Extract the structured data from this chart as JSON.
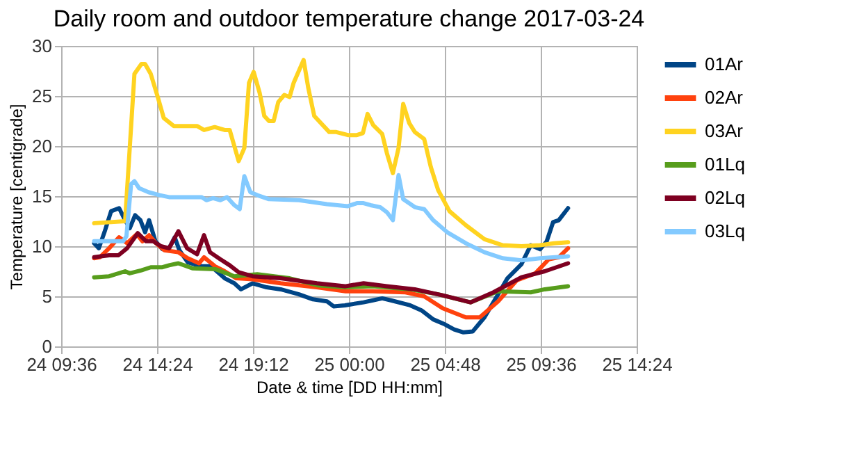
{
  "chart_data": {
    "type": "line",
    "title": "Daily room and outdoor temperature change 2017-03-24",
    "xlabel": "Date & time [DD HH:mm]",
    "ylabel": "Temperature [centigrade]",
    "xlim": [
      "2017-03-24T09:36",
      "2017-03-25T14:24"
    ],
    "xticks": [
      {
        "value": "2017-03-24T09:36",
        "label": "24 09:36"
      },
      {
        "value": "2017-03-24T14:24",
        "label": "24 14:24"
      },
      {
        "value": "2017-03-24T19:12",
        "label": "24 19:12"
      },
      {
        "value": "2017-03-25T00:00",
        "label": "25 00:00"
      },
      {
        "value": "2017-03-25T04:48",
        "label": "25 04:48"
      },
      {
        "value": "2017-03-25T09:36",
        "label": "25 09:36"
      },
      {
        "value": "2017-03-25T14:24",
        "label": "25 14:24"
      }
    ],
    "ylim": [
      0,
      30
    ],
    "yticks": [
      0,
      5,
      10,
      15,
      20,
      25,
      30
    ],
    "grid": true,
    "legend": "right",
    "marker": "none",
    "line_style": "solid",
    "series": [
      {
        "name": "01Ar",
        "color": "#004586",
        "x": [
          "2017-03-24T11:15",
          "2017-03-24T11:29",
          "2017-03-24T11:46",
          "2017-03-24T12:06",
          "2017-03-24T12:30",
          "2017-03-24T12:48",
          "2017-03-24T13:02",
          "2017-03-24T13:18",
          "2017-03-24T13:34",
          "2017-03-24T13:48",
          "2017-03-24T14:00",
          "2017-03-24T14:19",
          "2017-03-24T14:40",
          "2017-03-24T15:00",
          "2017-03-24T15:17",
          "2017-03-24T15:31",
          "2017-03-24T15:56",
          "2017-03-24T16:38",
          "2017-03-24T17:06",
          "2017-03-24T17:47",
          "2017-03-24T18:16",
          "2017-03-24T18:36",
          "2017-03-24T19:11",
          "2017-03-24T19:53",
          "2017-03-24T20:35",
          "2017-03-24T21:30",
          "2017-03-24T22:12",
          "2017-03-24T22:54",
          "2017-03-24T23:14",
          "2017-03-24T23:48",
          "2017-03-25T00:44",
          "2017-03-25T01:12",
          "2017-03-25T01:40",
          "2017-03-25T02:06",
          "2017-03-25T03:04",
          "2017-03-25T03:38",
          "2017-03-25T04:13",
          "2017-03-25T04:48",
          "2017-03-25T05:16",
          "2017-03-25T05:44",
          "2017-03-25T06:12",
          "2017-03-25T06:47",
          "2017-03-25T07:28",
          "2017-03-25T07:56",
          "2017-03-25T08:38",
          "2017-03-25T09:06",
          "2017-03-25T09:34",
          "2017-03-25T09:54",
          "2017-03-25T10:13",
          "2017-03-25T10:30",
          "2017-03-25T10:58"
        ],
        "values": [
          10.3,
          9.8,
          11.4,
          13.5,
          13.8,
          12.6,
          11.8,
          13.1,
          12.6,
          11.4,
          12.6,
          10.5,
          9.7,
          9.8,
          10.9,
          9.6,
          8.4,
          8.0,
          8.0,
          6.8,
          6.3,
          5.7,
          6.3,
          5.9,
          5.7,
          5.2,
          4.7,
          4.5,
          4.0,
          4.1,
          4.4,
          4.6,
          4.8,
          4.6,
          4.1,
          3.6,
          2.7,
          2.2,
          1.7,
          1.4,
          1.5,
          2.9,
          5.2,
          6.8,
          8.2,
          10.1,
          9.7,
          10.5,
          12.4,
          12.6,
          13.8
        ]
      },
      {
        "name": "02Ar",
        "color": "#ff420e",
        "x": [
          "2017-03-24T11:15",
          "2017-03-24T11:32",
          "2017-03-24T12:00",
          "2017-03-24T12:30",
          "2017-03-24T12:54",
          "2017-03-24T13:23",
          "2017-03-24T13:40",
          "2017-03-24T14:00",
          "2017-03-24T14:21",
          "2017-03-24T14:46",
          "2017-03-24T15:28",
          "2017-03-24T15:56",
          "2017-03-24T16:30",
          "2017-03-24T16:45",
          "2017-03-24T17:18",
          "2017-03-24T17:47",
          "2017-03-24T18:22",
          "2017-03-24T19:11",
          "2017-03-24T20:35",
          "2017-03-24T22:24",
          "2017-03-24T23:50",
          "2017-03-25T01:12",
          "2017-03-25T02:50",
          "2017-03-25T03:46",
          "2017-03-25T04:42",
          "2017-03-25T05:51",
          "2017-03-25T06:33",
          "2017-03-25T07:28",
          "2017-03-25T08:24",
          "2017-03-25T09:20",
          "2017-03-25T10:00",
          "2017-03-25T10:30",
          "2017-03-25T10:58"
        ],
        "values": [
          8.8,
          8.9,
          9.8,
          10.9,
          10.3,
          11.2,
          10.5,
          11.1,
          10.3,
          9.6,
          9.4,
          8.8,
          8.3,
          8.9,
          8.0,
          7.5,
          6.8,
          6.7,
          6.3,
          5.9,
          5.5,
          5.5,
          5.4,
          5.0,
          3.8,
          2.9,
          2.9,
          4.5,
          6.6,
          7.3,
          8.7,
          8.9,
          9.8
        ]
      },
      {
        "name": "03Ar",
        "color": "#ffd320",
        "x": [
          "2017-03-24T11:15",
          "2017-03-24T12:48",
          "2017-03-24T13:16",
          "2017-03-24T13:37",
          "2017-03-24T13:48",
          "2017-03-24T14:05",
          "2017-03-24T14:26",
          "2017-03-24T14:44",
          "2017-03-24T15:14",
          "2017-03-24T16:24",
          "2017-03-24T16:45",
          "2017-03-24T17:17",
          "2017-03-24T17:47",
          "2017-03-24T18:02",
          "2017-03-24T18:29",
          "2017-03-24T18:46",
          "2017-03-24T19:00",
          "2017-03-24T19:14",
          "2017-03-24T19:32",
          "2017-03-24T19:46",
          "2017-03-24T20:00",
          "2017-03-24T20:14",
          "2017-03-24T20:28",
          "2017-03-24T20:46",
          "2017-03-24T21:02",
          "2017-03-24T21:14",
          "2017-03-24T21:44",
          "2017-03-24T21:58",
          "2017-03-24T22:16",
          "2017-03-24T23:01",
          "2017-03-24T23:22",
          "2017-03-24T23:57",
          "2017-03-25T00:24",
          "2017-03-25T00:42",
          "2017-03-25T00:56",
          "2017-03-25T01:13",
          "2017-03-25T01:40",
          "2017-03-25T01:54",
          "2017-03-25T02:12",
          "2017-03-25T02:29",
          "2017-03-25T02:43",
          "2017-03-25T03:01",
          "2017-03-25T03:18",
          "2017-03-25T03:46",
          "2017-03-25T04:06",
          "2017-03-25T04:28",
          "2017-03-25T05:02",
          "2017-03-25T05:51",
          "2017-03-25T06:47",
          "2017-03-25T07:42",
          "2017-03-25T08:38",
          "2017-03-25T09:34",
          "2017-03-25T10:16",
          "2017-03-25T10:58"
        ],
        "values": [
          12.3,
          12.5,
          27.2,
          28.2,
          28.2,
          27.2,
          24.9,
          22.8,
          22.0,
          22.0,
          21.6,
          21.9,
          21.6,
          21.6,
          18.5,
          19.8,
          26.3,
          27.4,
          25.3,
          23.0,
          22.5,
          22.5,
          24.4,
          25.1,
          24.9,
          26.3,
          28.6,
          25.8,
          23.0,
          21.4,
          21.4,
          21.1,
          21.1,
          21.3,
          23.2,
          22.1,
          21.2,
          19.3,
          17.3,
          19.8,
          24.2,
          22.3,
          21.4,
          20.7,
          17.9,
          15.6,
          13.5,
          12.1,
          10.7,
          10.1,
          10.0,
          10.1,
          10.3,
          10.4
        ]
      },
      {
        "name": "01Lq",
        "color": "#579d1c",
        "x": [
          "2017-03-24T11:15",
          "2017-03-24T12:00",
          "2017-03-24T12:48",
          "2017-03-24T13:02",
          "2017-03-24T13:37",
          "2017-03-24T14:05",
          "2017-03-24T14:40",
          "2017-03-24T15:00",
          "2017-03-24T15:28",
          "2017-03-24T16:10",
          "2017-03-24T17:20",
          "2017-03-24T18:16",
          "2017-03-24T19:25",
          "2017-03-24T21:02",
          "2017-03-24T22:26",
          "2017-03-24T23:48",
          "2017-03-25T01:12",
          "2017-03-25T03:04",
          "2017-03-25T04:28",
          "2017-03-25T06:05",
          "2017-03-25T07:28",
          "2017-03-25T09:06",
          "2017-03-25T09:48",
          "2017-03-25T10:58"
        ],
        "values": [
          6.9,
          7.0,
          7.5,
          7.3,
          7.6,
          7.9,
          7.9,
          8.1,
          8.3,
          7.8,
          7.7,
          7.0,
          7.2,
          6.8,
          6.1,
          5.9,
          6.0,
          5.7,
          5.2,
          4.4,
          5.5,
          5.4,
          5.7,
          6.0
        ]
      },
      {
        "name": "02Lq",
        "color": "#7e0021",
        "x": [
          "2017-03-24T11:15",
          "2017-03-24T12:00",
          "2017-03-24T12:28",
          "2017-03-24T12:54",
          "2017-03-24T13:26",
          "2017-03-24T13:51",
          "2017-03-24T14:12",
          "2017-03-24T14:36",
          "2017-03-24T15:00",
          "2017-03-24T15:28",
          "2017-03-24T15:54",
          "2017-03-24T16:24",
          "2017-03-24T16:45",
          "2017-03-24T17:03",
          "2017-03-24T17:34",
          "2017-03-24T18:02",
          "2017-03-24T18:29",
          "2017-03-24T19:11",
          "2017-03-24T20:35",
          "2017-03-24T22:24",
          "2017-03-24T23:48",
          "2017-03-25T00:44",
          "2017-03-25T01:54",
          "2017-03-25T03:18",
          "2017-03-25T04:42",
          "2017-03-25T06:05",
          "2017-03-25T07:14",
          "2017-03-25T08:38",
          "2017-03-25T09:48",
          "2017-03-25T10:58"
        ],
        "values": [
          8.9,
          9.1,
          9.1,
          9.8,
          11.3,
          10.5,
          10.5,
          10.0,
          9.8,
          11.5,
          9.8,
          9.2,
          11.1,
          9.4,
          8.7,
          8.1,
          7.4,
          7.0,
          6.8,
          6.3,
          6.0,
          6.3,
          6.0,
          5.7,
          5.1,
          4.4,
          5.4,
          6.9,
          7.5,
          8.3
        ]
      },
      {
        "name": "03Lq",
        "color": "#83caff",
        "x": [
          "2017-03-24T11:15",
          "2017-03-24T12:42",
          "2017-03-24T12:52",
          "2017-03-24T13:06",
          "2017-03-24T13:16",
          "2017-03-24T13:30",
          "2017-03-24T13:58",
          "2017-03-24T14:32",
          "2017-03-24T15:00",
          "2017-03-24T16:38",
          "2017-03-24T16:52",
          "2017-03-24T17:12",
          "2017-03-24T17:34",
          "2017-03-24T17:54",
          "2017-03-24T18:16",
          "2017-03-24T18:32",
          "2017-03-24T18:46",
          "2017-03-24T19:04",
          "2017-03-24T19:25",
          "2017-03-24T20:00",
          "2017-03-24T21:30",
          "2017-03-24T22:54",
          "2017-03-24T23:57",
          "2017-03-25T00:24",
          "2017-03-25T00:44",
          "2017-03-25T01:05",
          "2017-03-25T01:34",
          "2017-03-25T01:54",
          "2017-03-25T02:12",
          "2017-03-25T02:29",
          "2017-03-25T02:43",
          "2017-03-25T03:18",
          "2017-03-25T03:46",
          "2017-03-25T04:13",
          "2017-03-25T04:55",
          "2017-03-25T05:51",
          "2017-03-25T06:47",
          "2017-03-25T07:42",
          "2017-03-25T08:38",
          "2017-03-25T09:34",
          "2017-03-25T10:58"
        ],
        "values": [
          10.5,
          10.5,
          11.0,
          16.2,
          16.5,
          15.8,
          15.4,
          15.1,
          14.9,
          14.9,
          14.6,
          14.8,
          14.6,
          14.9,
          14.1,
          13.7,
          17.0,
          15.4,
          15.1,
          14.7,
          14.6,
          14.2,
          14.0,
          14.3,
          14.3,
          14.1,
          13.9,
          13.4,
          12.6,
          17.1,
          14.7,
          13.9,
          13.7,
          12.6,
          11.4,
          10.3,
          9.4,
          8.8,
          8.6,
          8.8,
          9.0
        ]
      }
    ]
  }
}
